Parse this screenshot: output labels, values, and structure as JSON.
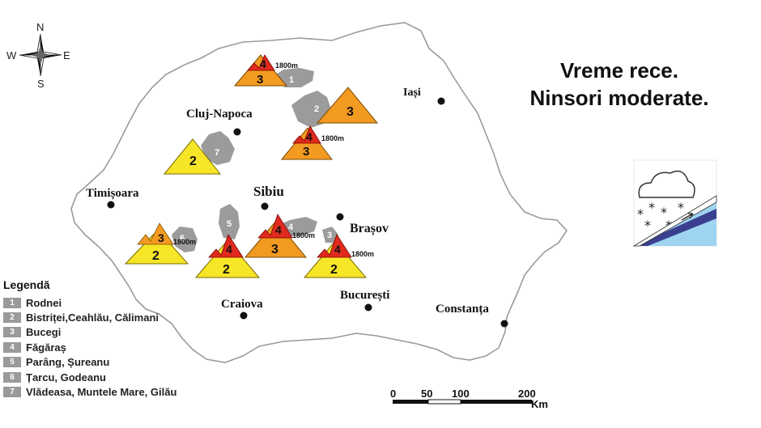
{
  "headline": {
    "line1": "Vreme rece.",
    "line2": "Ninsori moderate."
  },
  "compass": {
    "n": "N",
    "s": "S",
    "e": "E",
    "w": "W"
  },
  "cities": [
    {
      "name": "Cluj-Napoca",
      "id": "cluj-napoca"
    },
    {
      "name": "Iași",
      "id": "iasi"
    },
    {
      "name": "Timișoara",
      "id": "timisoara"
    },
    {
      "name": "Sibiu",
      "id": "sibiu"
    },
    {
      "name": "Brașov",
      "id": "brasov"
    },
    {
      "name": "Craiova",
      "id": "craiova"
    },
    {
      "name": "București",
      "id": "bucuresti"
    },
    {
      "name": "Constanța",
      "id": "constanta"
    }
  ],
  "zones": [
    {
      "id": "1",
      "region": "Rodnei",
      "low_level": "3",
      "high_level": "4",
      "altitude": "1800m"
    },
    {
      "id": "2",
      "region": "Bistriței,Ceahlău, Călimani",
      "low_level": "3"
    },
    {
      "id": "central-east",
      "low_level": "3",
      "high_level": "4",
      "altitude": "1800m"
    },
    {
      "id": "7",
      "region": "Vlădeasa, Muntele Mare, Gilău",
      "low_level": "2"
    },
    {
      "id": "6",
      "region": "Țarcu, Godeanu",
      "low_level": "2",
      "high_level": "3",
      "altitude": "1800m"
    },
    {
      "id": "5",
      "region": "Parâng, Șureanu",
      "low_level": "2",
      "high_level": "4"
    },
    {
      "id": "4",
      "region": "Făgăraș",
      "low_level": "3",
      "high_level": "4",
      "altitude": "1800m"
    },
    {
      "id": "3",
      "region": "Bucegi",
      "low_level": "2",
      "high_level": "4",
      "altitude": "1800m"
    }
  ],
  "legend": {
    "title": "Legendă",
    "items": [
      {
        "num": "1",
        "label": "Rodnei"
      },
      {
        "num": "2",
        "label": "Bistriței,Ceahlău, Călimani"
      },
      {
        "num": "3",
        "label": "Bucegi"
      },
      {
        "num": "4",
        "label": "Făgăraș"
      },
      {
        "num": "5",
        "label": "Parâng, Șureanu"
      },
      {
        "num": "6",
        "label": "Țarcu, Godeanu"
      },
      {
        "num": "7",
        "label": "Vlădeasa, Muntele Mare, Gilău"
      }
    ]
  },
  "scale": {
    "ticks": [
      "0",
      "50",
      "100",
      "200"
    ],
    "unit": "Km"
  },
  "colors": {
    "level2": "#f7e627",
    "level3": "#f39a21",
    "level4": "#e02a1e",
    "mountain_gray": "#9b9b9b"
  },
  "weather_icon": "snow-cloud-slope-icon"
}
